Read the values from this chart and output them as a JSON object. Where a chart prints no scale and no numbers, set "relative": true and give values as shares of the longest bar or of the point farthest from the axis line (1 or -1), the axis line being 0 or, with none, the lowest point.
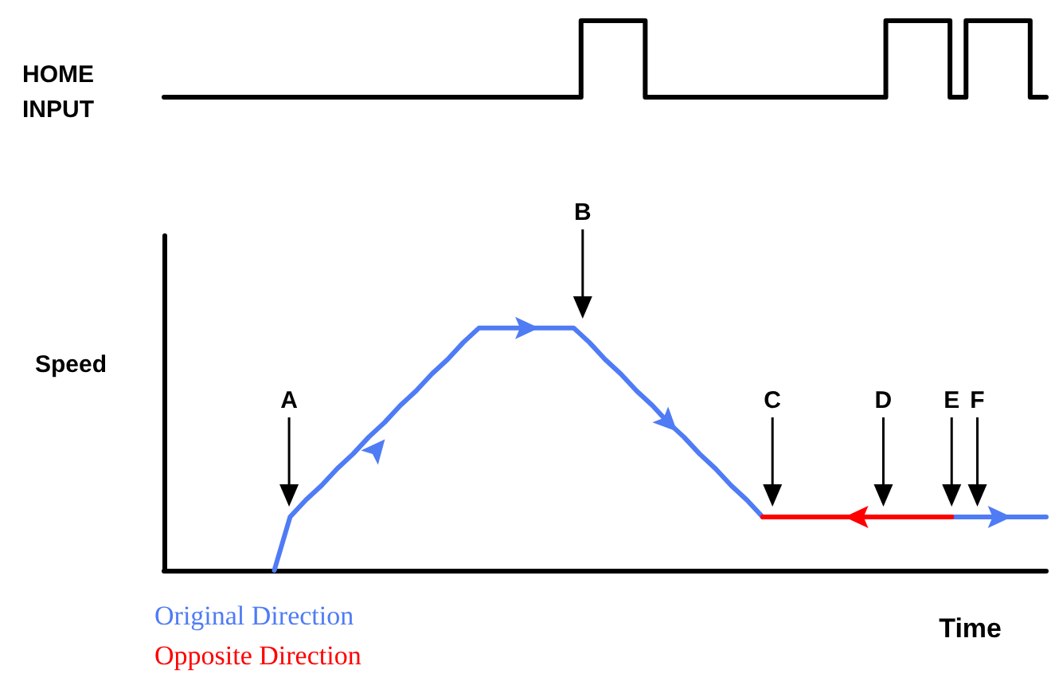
{
  "chart_data": [
    {
      "type": "step",
      "ylabel": "HOME\nINPUT",
      "relative": true,
      "grid": false,
      "marker": "none",
      "line_style": "solid",
      "categories": [
        null,
        null,
        null,
        null,
        null,
        null,
        null,
        null,
        null,
        null,
        null,
        null,
        null,
        null,
        null,
        null,
        null,
        null,
        null,
        null,
        null,
        null,
        null,
        null,
        null,
        null,
        null,
        null,
        null,
        null,
        null,
        null,
        null,
        null,
        null,
        null,
        null,
        null,
        null,
        null,
        null,
        null,
        null,
        null,
        null,
        null,
        null,
        null,
        null,
        null,
        null,
        null,
        null,
        null,
        null,
        null
      ],
      "series": [
        {
          "color": "#000000",
          "values": [
            0,
            0,
            0,
            0,
            0,
            0,
            0,
            0,
            0,
            0,
            0,
            0,
            0,
            0,
            0,
            0,
            0,
            0,
            0,
            0,
            0,
            0,
            0,
            0,
            0,
            0,
            1,
            1,
            1,
            1,
            0,
            0,
            0,
            0,
            0,
            0,
            0,
            0,
            0,
            0,
            0,
            0,
            0,
            0,
            0,
            1,
            1,
            1,
            1,
            0,
            1,
            1,
            1,
            1,
            0,
            0
          ]
        }
      ]
    },
    {
      "type": "line",
      "ylabel": "Speed",
      "xlabel": "Time",
      "relative": true,
      "grid": false,
      "marker": "none",
      "line_style": "solid",
      "categories": [
        null,
        null,
        null,
        null,
        null,
        null,
        null,
        null,
        null,
        null,
        null,
        null,
        null,
        null,
        null,
        null,
        null,
        null,
        null,
        null,
        null,
        null,
        null,
        null,
        null,
        null,
        null,
        null,
        null,
        null,
        null,
        null,
        null,
        null,
        null,
        null,
        null,
        null,
        null,
        null,
        null,
        null,
        null,
        null,
        null,
        null,
        null,
        null,
        null,
        null,
        null,
        null,
        null,
        null,
        null,
        null,
        null
      ],
      "series": [
        {
          "name": "Original Direction",
          "color": "#4f7cf5",
          "values": [
            null,
            null,
            null,
            null,
            null,
            null,
            null,
            0,
            0.22,
            0.29,
            0.35,
            0.42,
            0.48,
            0.55,
            0.61,
            0.68,
            0.74,
            0.81,
            0.87,
            0.94,
            1,
            1,
            1,
            1,
            1,
            1,
            1,
            0.94,
            0.87,
            0.81,
            0.74,
            0.68,
            0.61,
            0.55,
            0.48,
            0.42,
            0.35,
            0.29,
            0.22,
            null,
            null,
            null,
            null,
            null,
            null,
            null,
            null,
            null,
            null,
            null,
            0.22,
            0.22,
            0.22,
            0.22,
            0.22,
            0.22,
            0.22
          ]
        },
        {
          "name": "Opposite Direction",
          "color": "#ff0000",
          "values": [
            null,
            null,
            null,
            null,
            null,
            null,
            null,
            null,
            null,
            null,
            null,
            null,
            null,
            null,
            null,
            null,
            null,
            null,
            null,
            null,
            null,
            null,
            null,
            null,
            null,
            null,
            null,
            null,
            null,
            null,
            null,
            null,
            null,
            null,
            null,
            null,
            null,
            null,
            0.22,
            0.22,
            0.22,
            0.22,
            0.22,
            0.22,
            0.22,
            0.22,
            0.22,
            0.22,
            0.22,
            0.22,
            0.22,
            null,
            null,
            null,
            null,
            null,
            null
          ]
        }
      ],
      "annotations": [
        "A",
        "B",
        "C",
        "D",
        "E",
        "F"
      ]
    }
  ]
}
